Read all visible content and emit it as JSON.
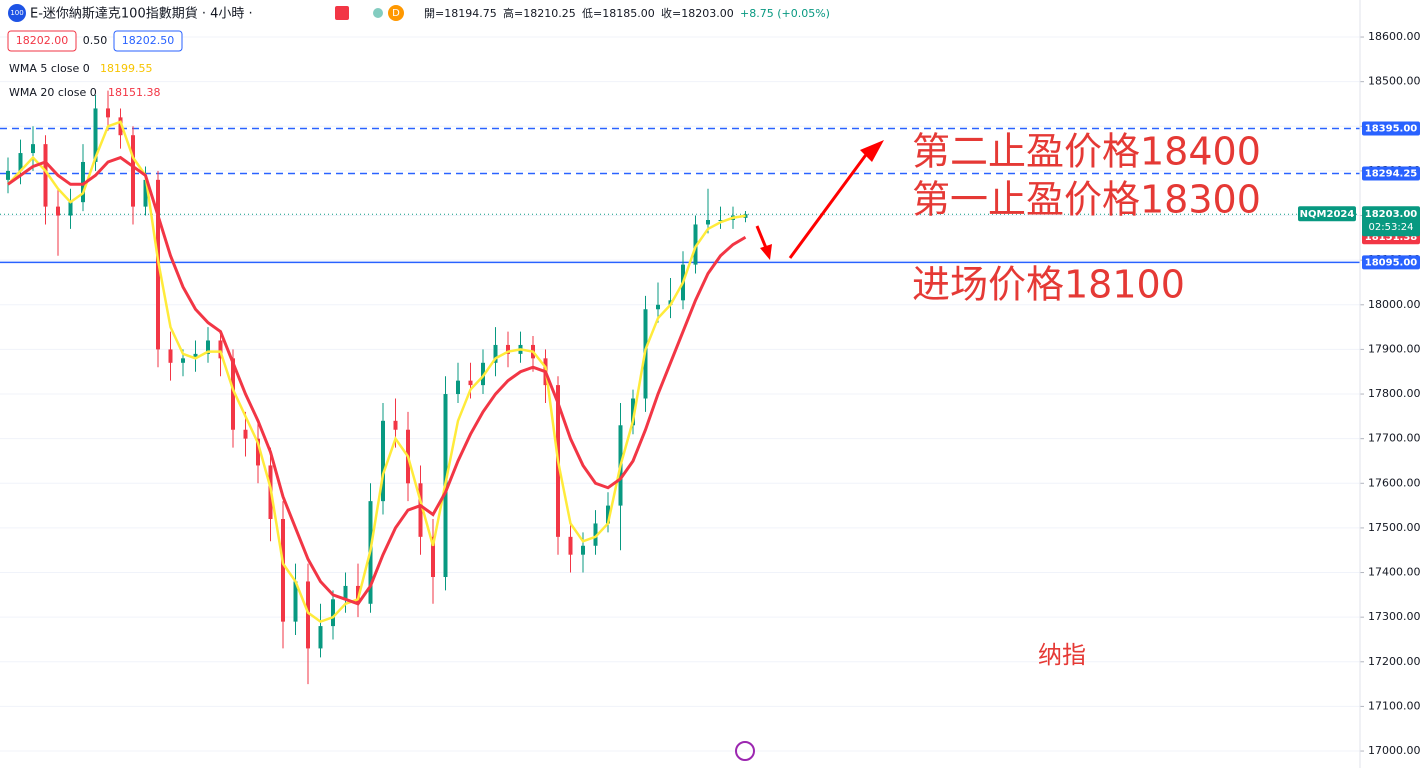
{
  "header": {
    "symbol_icon": "100",
    "title": "E-迷你納斯達克100指數期貨 · 4小時 ·",
    "badge": "D",
    "open": "開=18194.75",
    "high": "高=18210.25",
    "low": "低=18185.00",
    "close": "收=18203.00",
    "change": "+8.75 (+0.05%)",
    "sell": "18202.00",
    "spread": "0.50",
    "buy": "18202.50"
  },
  "chart_data": {
    "type": "candlestick",
    "open": [
      18280,
      18300,
      18340,
      18360,
      18220,
      18200,
      18230,
      18320,
      18440,
      18420,
      18380,
      18220,
      18280,
      17900,
      17870,
      17880,
      17890,
      17920,
      17880,
      17720,
      17700,
      17640,
      17520,
      17290,
      17380,
      17230,
      17280,
      17340,
      17370,
      17330,
      17560,
      17740,
      17720,
      17600,
      17480,
      17390,
      17800,
      17830,
      17820,
      17870,
      17910,
      17890,
      17910,
      17880,
      17820,
      17480,
      17440,
      17460,
      17510,
      17550,
      17730,
      17790,
      17990,
      18000,
      18010,
      18090,
      18180,
      18190,
      18190,
      18194.75
    ],
    "high": [
      18330,
      18370,
      18400,
      18380,
      18260,
      18260,
      18360,
      18470,
      18480,
      18440,
      18400,
      18310,
      18300,
      17940,
      17900,
      17920,
      17950,
      17940,
      17900,
      17760,
      17740,
      17680,
      17560,
      17420,
      17420,
      17330,
      17360,
      17400,
      17420,
      17600,
      17780,
      17790,
      17760,
      17640,
      17520,
      17840,
      17870,
      17870,
      17900,
      17950,
      17940,
      17940,
      17930,
      17900,
      17840,
      17510,
      17490,
      17540,
      17580,
      17780,
      17810,
      18020,
      18050,
      18060,
      18120,
      18200,
      18260,
      18220,
      18220,
      18210.25
    ],
    "low": [
      18250,
      18270,
      18300,
      18180,
      18110,
      18170,
      18210,
      18300,
      18390,
      18350,
      18180,
      18200,
      17860,
      17830,
      17840,
      17850,
      17870,
      17840,
      17680,
      17660,
      17600,
      17470,
      17230,
      17260,
      17150,
      17210,
      17250,
      17310,
      17300,
      17310,
      17530,
      17680,
      17560,
      17440,
      17330,
      17360,
      17780,
      17790,
      17800,
      17840,
      17860,
      17870,
      17850,
      17780,
      17440,
      17400,
      17400,
      17440,
      17490,
      17450,
      17710,
      17760,
      17960,
      17970,
      17990,
      18070,
      18160,
      18170,
      18170,
      18185
    ],
    "close": [
      18300,
      18340,
      18360,
      18220,
      18200,
      18230,
      18320,
      18440,
      18420,
      18380,
      18220,
      18280,
      17900,
      17870,
      17880,
      17890,
      17920,
      17880,
      17720,
      17700,
      17640,
      17520,
      17290,
      17380,
      17230,
      17280,
      17340,
      17370,
      17330,
      17560,
      17740,
      17720,
      17600,
      17480,
      17390,
      17800,
      17830,
      17820,
      17870,
      17910,
      17890,
      17910,
      17880,
      17820,
      17480,
      17440,
      17460,
      17510,
      17550,
      17730,
      17790,
      17990,
      18000,
      18010,
      18090,
      18180,
      18190,
      18190,
      18200,
      18203
    ],
    "up_color": "#089981",
    "down_color": "#f23645",
    "lines": [
      {
        "name": "WMA 5 close 0",
        "color": "#ffeb3b",
        "value_label": "18199.55",
        "values": [
          18270,
          18300,
          18330,
          18300,
          18260,
          18230,
          18250,
          18330,
          18400,
          18410,
          18330,
          18290,
          18100,
          17950,
          17890,
          17880,
          17895,
          17895,
          17810,
          17750,
          17690,
          17590,
          17420,
          17380,
          17310,
          17290,
          17300,
          17330,
          17340,
          17450,
          17620,
          17700,
          17660,
          17560,
          17460,
          17600,
          17740,
          17810,
          17840,
          17880,
          17895,
          17900,
          17895,
          17860,
          17650,
          17510,
          17470,
          17480,
          17510,
          17640,
          17740,
          17900,
          17970,
          18000,
          18050,
          18130,
          18170,
          18185,
          18195,
          18199.55
        ]
      },
      {
        "name": "WMA 20 close 0",
        "color": "#f23645",
        "value_label": "18151.38",
        "values": [
          18270,
          18290,
          18310,
          18320,
          18290,
          18270,
          18270,
          18290,
          18320,
          18330,
          18310,
          18290,
          18200,
          18110,
          18040,
          17990,
          17960,
          17940,
          17870,
          17800,
          17740,
          17670,
          17570,
          17500,
          17430,
          17380,
          17350,
          17340,
          17330,
          17370,
          17440,
          17500,
          17540,
          17550,
          17530,
          17580,
          17650,
          17710,
          17760,
          17800,
          17830,
          17850,
          17860,
          17850,
          17780,
          17700,
          17640,
          17600,
          17590,
          17610,
          17650,
          17720,
          17800,
          17870,
          17940,
          18010,
          18070,
          18110,
          18135,
          18151.38
        ]
      }
    ],
    "ylim": [
      16962,
      18683
    ],
    "yticks": [
      {
        "value": 17000,
        "label": "17000.00"
      },
      {
        "value": 17100,
        "label": "17100.00"
      },
      {
        "value": 17200,
        "label": "17200.00"
      },
      {
        "value": 17300,
        "label": "17300.00"
      },
      {
        "value": 17400,
        "label": "17400.00"
      },
      {
        "value": 17500,
        "label": "17500.00"
      },
      {
        "value": 17600,
        "label": "17600.00"
      },
      {
        "value": 17700,
        "label": "17700.00"
      },
      {
        "value": 17800,
        "label": "17800.00"
      },
      {
        "value": 17900,
        "label": "17900.00"
      },
      {
        "value": 18000,
        "label": "18000.00"
      },
      {
        "value": 18100,
        "label": "18100.00"
      },
      {
        "value": 18200,
        "label": "18200.00"
      },
      {
        "value": 18300,
        "label": "18300.00"
      },
      {
        "value": 18400,
        "label": "18400.00"
      },
      {
        "value": 18500,
        "label": "18500.00"
      },
      {
        "value": 18600,
        "label": "18600.00"
      }
    ],
    "hlines": [
      {
        "value": 18395,
        "label": "18395.00",
        "style": "dashed",
        "color": "#2962ff"
      },
      {
        "value": 18294.25,
        "label": "18294.25",
        "style": "dashed",
        "color": "#2962ff"
      },
      {
        "value": 18095,
        "label": "18095.00",
        "style": "solid",
        "color": "#2962ff"
      }
    ],
    "last_price": {
      "value": 18203,
      "label": "18203.00",
      "symbol": "NQM2024",
      "countdown": "02:53:24",
      "color": "#089981"
    },
    "annotations": [
      "第二止盈价格18400",
      "第一止盈价格18300",
      "进场价格18100",
      "纳指"
    ],
    "grid": true
  }
}
